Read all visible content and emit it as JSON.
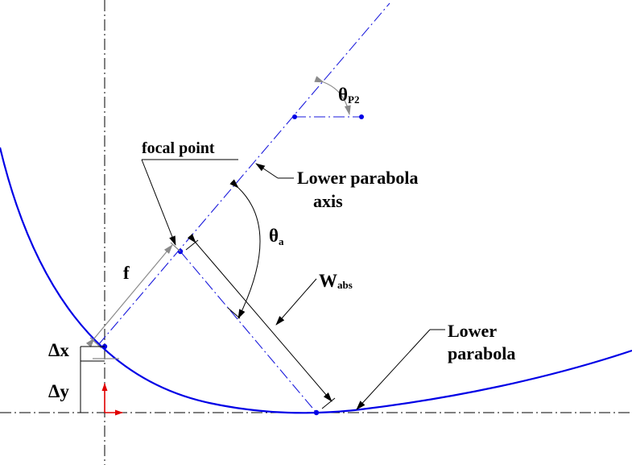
{
  "labels": {
    "focal_point": "focal point",
    "lower_parabola_axis_line1": "Lower parabola",
    "lower_parabola_axis_line2": "axis",
    "lower_parabola_line1": "Lower",
    "lower_parabola_line2": "parabola",
    "f": "f",
    "theta_a_main": "θ",
    "theta_a_sub": "a",
    "theta_p2_main": "θ",
    "theta_p2_sub": "P2",
    "w_abs_main": "W",
    "w_abs_sub": "abs",
    "delta_x": "Δx",
    "delta_y": "Δy"
  },
  "colors": {
    "curve": "#0000e6",
    "axis_blue": "#1a1adc",
    "dimension_grey": "#8a8a8a",
    "origin_red": "#e00000",
    "ink": "#000000"
  }
}
